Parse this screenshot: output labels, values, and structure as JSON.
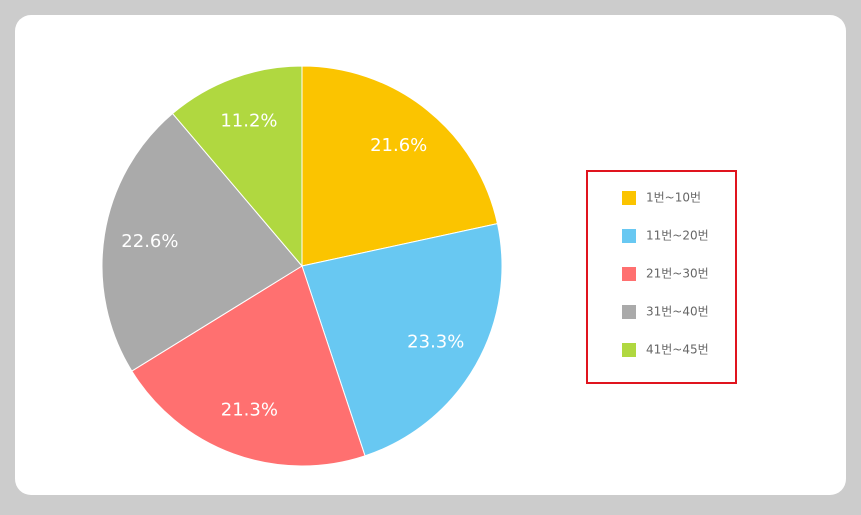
{
  "chart_data": {
    "type": "pie",
    "categories": [
      "1번~10번",
      "11번~20번",
      "21번~30번",
      "31번~40번",
      "41번~45번"
    ],
    "values": [
      21.6,
      23.3,
      21.3,
      22.6,
      11.2
    ],
    "value_labels": [
      "21.6%",
      "23.3%",
      "21.3%",
      "22.6%",
      "11.2%"
    ],
    "colors": [
      "#fbc400",
      "#68c8f2",
      "#ff7070",
      "#aaaaaa",
      "#b0d840"
    ]
  }
}
